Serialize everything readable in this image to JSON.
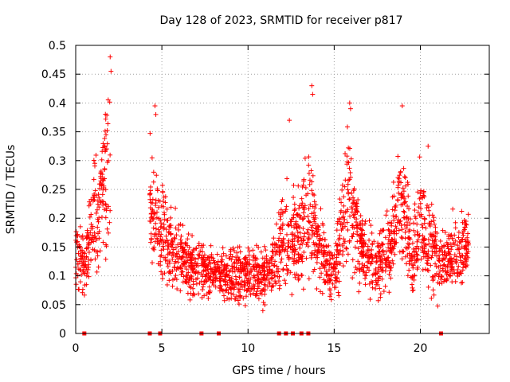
{
  "chart_data": {
    "type": "scatter",
    "title": "Day 128 of 2023, SRMTID for receiver p817",
    "xlabel": "GPS time / hours",
    "ylabel": "SRMTID / TECUs",
    "xlim": [
      0,
      24
    ],
    "ylim": [
      0,
      0.5
    ],
    "xticks": [
      0,
      5,
      10,
      15,
      20
    ],
    "xtick_labels": [
      "0",
      "5",
      "10",
      "15",
      "20"
    ],
    "yticks": [
      0,
      0.05,
      0.1,
      0.15,
      0.2,
      0.25,
      0.3,
      0.35,
      0.4,
      0.45,
      0.5
    ],
    "ytick_labels": [
      "0",
      "0.05",
      "0.1",
      "0.15",
      "0.2",
      "0.25",
      "0.3",
      "0.35",
      "0.4",
      "0.45",
      "0.5"
    ],
    "grid": true,
    "marker": "+",
    "color": "#ff0000",
    "data_gap_markers_x": [
      0.5,
      4.3,
      4.9,
      7.3,
      8.3,
      11.8,
      12.2,
      12.6,
      13.1,
      13.5,
      21.2
    ],
    "envelope": [
      {
        "x": 0.0,
        "center": 0.14,
        "spread": 0.07
      },
      {
        "x": 0.5,
        "center": 0.12,
        "spread": 0.05
      },
      {
        "x": 1.0,
        "center": 0.2,
        "spread": 0.09
      },
      {
        "x": 1.5,
        "center": 0.23,
        "spread": 0.11
      },
      {
        "x": 2.0,
        "center": 0.3,
        "spread": 0.15
      },
      {
        "x": 4.3,
        "center": 0.22,
        "spread": 0.1
      },
      {
        "x": 4.8,
        "center": 0.18,
        "spread": 0.1
      },
      {
        "x": 5.5,
        "center": 0.15,
        "spread": 0.07
      },
      {
        "x": 6.5,
        "center": 0.12,
        "spread": 0.06
      },
      {
        "x": 7.5,
        "center": 0.11,
        "spread": 0.05
      },
      {
        "x": 8.5,
        "center": 0.1,
        "spread": 0.04
      },
      {
        "x": 9.5,
        "center": 0.1,
        "spread": 0.05
      },
      {
        "x": 10.5,
        "center": 0.1,
        "spread": 0.05
      },
      {
        "x": 11.3,
        "center": 0.1,
        "spread": 0.05
      },
      {
        "x": 12.0,
        "center": 0.17,
        "spread": 0.09
      },
      {
        "x": 12.8,
        "center": 0.16,
        "spread": 0.08
      },
      {
        "x": 13.5,
        "center": 0.22,
        "spread": 0.12
      },
      {
        "x": 14.3,
        "center": 0.13,
        "spread": 0.07
      },
      {
        "x": 15.0,
        "center": 0.1,
        "spread": 0.05
      },
      {
        "x": 15.8,
        "center": 0.25,
        "spread": 0.13
      },
      {
        "x": 16.5,
        "center": 0.15,
        "spread": 0.07
      },
      {
        "x": 17.5,
        "center": 0.12,
        "spread": 0.06
      },
      {
        "x": 18.3,
        "center": 0.15,
        "spread": 0.08
      },
      {
        "x": 18.9,
        "center": 0.24,
        "spread": 0.12
      },
      {
        "x": 19.5,
        "center": 0.13,
        "spread": 0.07
      },
      {
        "x": 20.0,
        "center": 0.2,
        "spread": 0.1
      },
      {
        "x": 20.6,
        "center": 0.15,
        "spread": 0.08
      },
      {
        "x": 21.2,
        "center": 0.12,
        "spread": 0.06
      },
      {
        "x": 22.0,
        "center": 0.13,
        "spread": 0.07
      },
      {
        "x": 22.8,
        "center": 0.16,
        "spread": 0.05
      }
    ],
    "peaks": [
      {
        "x": 2.0,
        "y": 0.48
      },
      {
        "x": 2.05,
        "y": 0.455
      },
      {
        "x": 4.6,
        "y": 0.395
      },
      {
        "x": 4.65,
        "y": 0.38
      },
      {
        "x": 12.4,
        "y": 0.37
      },
      {
        "x": 13.7,
        "y": 0.43
      },
      {
        "x": 13.75,
        "y": 0.415
      },
      {
        "x": 15.9,
        "y": 0.4
      },
      {
        "x": 15.95,
        "y": 0.39
      },
      {
        "x": 18.95,
        "y": 0.395
      },
      {
        "x": 20.45,
        "y": 0.325
      }
    ]
  }
}
